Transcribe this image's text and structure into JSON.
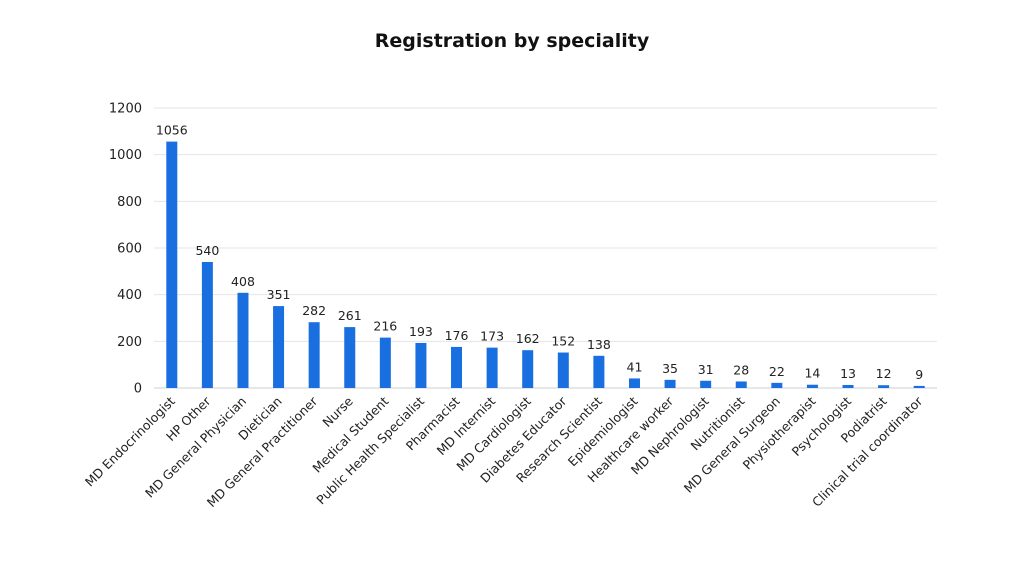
{
  "chart_data": {
    "type": "bar",
    "title": "Registration by speciality",
    "xlabel": "",
    "ylabel": "",
    "ylim": [
      0,
      1200
    ],
    "yticks": [
      0,
      200,
      400,
      600,
      800,
      1000,
      1200
    ],
    "grid": true,
    "legend": "none",
    "bar_color": "#1a6fe0",
    "categories": [
      "MD Endocrinologist",
      "HP Other",
      "MD General Physician",
      "Dietician",
      "MD General Practitioner",
      "Nurse",
      "Medical Student",
      "Public Health Specialist",
      "Pharmacist",
      "MD Internist",
      "MD Cardiologist",
      "Diabetes Educator",
      "Research Scientist",
      "Epidemiologist",
      "Healthcare worker",
      "MD Nephrologist",
      "Nutritionist",
      "MD General Surgeon",
      "Physiotherapist",
      "Psychologist",
      "Podiatrist",
      "Clinical trial coordinator"
    ],
    "values": [
      1056,
      540,
      408,
      351,
      282,
      261,
      216,
      193,
      176,
      173,
      162,
      152,
      138,
      41,
      35,
      31,
      28,
      22,
      14,
      13,
      12,
      9
    ]
  }
}
